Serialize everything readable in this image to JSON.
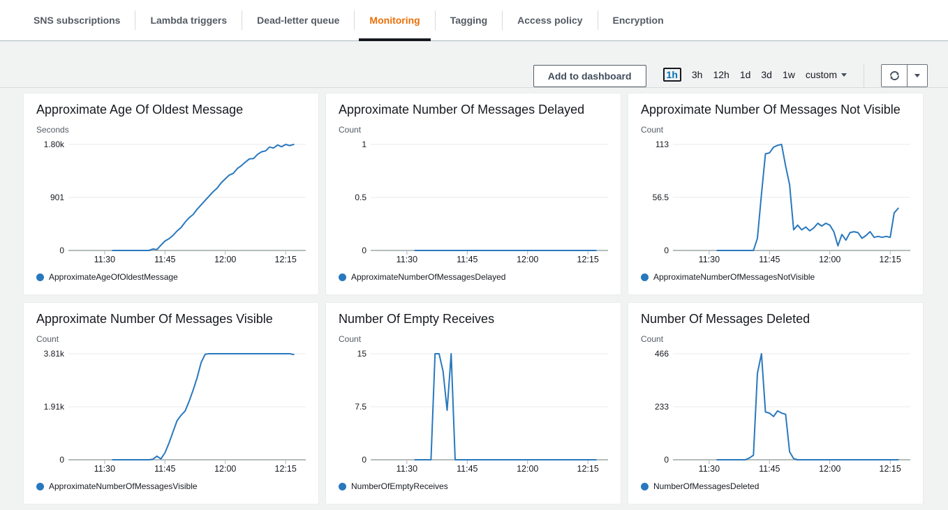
{
  "tabs": {
    "items": [
      {
        "label": "SNS subscriptions",
        "active": false
      },
      {
        "label": "Lambda triggers",
        "active": false
      },
      {
        "label": "Dead-letter queue",
        "active": false
      },
      {
        "label": "Monitoring",
        "active": true
      },
      {
        "label": "Tagging",
        "active": false
      },
      {
        "label": "Access policy",
        "active": false
      },
      {
        "label": "Encryption",
        "active": false
      }
    ]
  },
  "toolbar": {
    "add_to_dashboard_label": "Add to dashboard",
    "ranges": [
      "1h",
      "3h",
      "12h",
      "1d",
      "3d",
      "1w"
    ],
    "selected_range": "1h",
    "custom_label": "custom",
    "refresh_icon": "refresh-icon",
    "caret_icon": "caret-down-icon"
  },
  "colors": {
    "line": "#2878bd",
    "accent_orange": "#eb6f07",
    "selected_range_blue": "#0073bb",
    "grid": "#e9ebeb",
    "axis": "#b4bcbc"
  },
  "chart_data": {
    "type": "line",
    "x_domain": [
      "11:21",
      "12:20"
    ],
    "x_axis_ticks": [
      "11:30",
      "11:45",
      "12:00",
      "12:15"
    ],
    "x_times": [
      "11:32",
      "11:33",
      "11:34",
      "11:35",
      "11:36",
      "11:37",
      "11:38",
      "11:39",
      "11:40",
      "11:41",
      "11:42",
      "11:43",
      "11:44",
      "11:45",
      "11:46",
      "11:47",
      "11:48",
      "11:49",
      "11:50",
      "11:51",
      "11:52",
      "11:53",
      "11:54",
      "11:55",
      "11:56",
      "11:57",
      "11:58",
      "11:59",
      "12:00",
      "12:01",
      "12:02",
      "12:03",
      "12:04",
      "12:05",
      "12:06",
      "12:07",
      "12:08",
      "12:09",
      "12:10",
      "12:11",
      "12:12",
      "12:13",
      "12:14",
      "12:15",
      "12:16",
      "12:17"
    ],
    "charts": [
      {
        "title": "Approximate Age Of Oldest Message",
        "unit": "Seconds",
        "legend": "ApproximateAgeOfOldestMessage",
        "y_ticks": [
          "1.80k",
          "901",
          "0"
        ],
        "y_max": 1800,
        "values": [
          0,
          0,
          0,
          0,
          0,
          0,
          0,
          0,
          0,
          0,
          25,
          15,
          90,
          160,
          200,
          255,
          330,
          390,
          480,
          555,
          610,
          700,
          775,
          850,
          925,
          1000,
          1060,
          1150,
          1215,
          1280,
          1310,
          1390,
          1440,
          1500,
          1555,
          1560,
          1630,
          1675,
          1690,
          1755,
          1740,
          1790,
          1760,
          1800,
          1780,
          1800
        ]
      },
      {
        "title": "Approximate Number Of Messages Delayed",
        "unit": "Count",
        "legend": "ApproximateNumberOfMessagesDelayed",
        "y_ticks": [
          "1",
          "0.5",
          "0"
        ],
        "y_max": 1,
        "values": [
          0,
          0,
          0,
          0,
          0,
          0,
          0,
          0,
          0,
          0,
          0,
          0,
          0,
          0,
          0,
          0,
          0,
          0,
          0,
          0,
          0,
          0,
          0,
          0,
          0,
          0,
          0,
          0,
          0,
          0,
          0,
          0,
          0,
          0,
          0,
          0,
          0,
          0,
          0,
          0,
          0,
          0,
          0,
          0,
          0,
          0
        ]
      },
      {
        "title": "Approximate Number Of Messages Not Visible",
        "unit": "Count",
        "legend": "ApproximateNumberOfMessagesNotVisible",
        "y_ticks": [
          "113",
          "56.5",
          "0"
        ],
        "y_max": 113,
        "values": [
          0,
          0,
          0,
          0,
          0,
          0,
          0,
          0,
          0,
          0,
          13,
          60,
          103,
          104,
          110,
          112,
          113,
          90,
          70,
          22,
          27,
          22,
          25,
          21,
          24,
          29,
          26,
          29,
          27,
          20,
          5,
          17,
          11,
          19,
          20,
          19,
          13,
          16,
          20,
          14,
          15,
          14,
          15,
          14,
          40,
          45
        ]
      },
      {
        "title": "Approximate Number Of Messages Visible",
        "unit": "Count",
        "legend": "ApproximateNumberOfMessagesVisible",
        "y_ticks": [
          "3.81k",
          "1.91k",
          "0"
        ],
        "y_max": 3810,
        "values": [
          0,
          0,
          0,
          0,
          0,
          0,
          0,
          0,
          0,
          0,
          20,
          130,
          30,
          250,
          600,
          1000,
          1400,
          1600,
          1750,
          2100,
          2500,
          2950,
          3500,
          3790,
          3810,
          3810,
          3810,
          3810,
          3810,
          3810,
          3810,
          3810,
          3810,
          3810,
          3810,
          3810,
          3810,
          3810,
          3810,
          3810,
          3810,
          3810,
          3810,
          3810,
          3810,
          3780
        ]
      },
      {
        "title": "Number Of Empty Receives",
        "unit": "Count",
        "legend": "NumberOfEmptyReceives",
        "y_ticks": [
          "15",
          "7.5",
          "0"
        ],
        "y_max": 15,
        "values": [
          0,
          0,
          0,
          0,
          0,
          15,
          15,
          12.5,
          7,
          15,
          0,
          0,
          0,
          0,
          0,
          0,
          0,
          0,
          0,
          0,
          0,
          0,
          0,
          0,
          0,
          0,
          0,
          0,
          0,
          0,
          0,
          0,
          0,
          0,
          0,
          0,
          0,
          0,
          0,
          0,
          0,
          0,
          0,
          0,
          0,
          0
        ]
      },
      {
        "title": "Number Of Messages Deleted",
        "unit": "Count",
        "legend": "NumberOfMessagesDeleted",
        "y_ticks": [
          "466",
          "233",
          "0"
        ],
        "y_max": 466,
        "values": [
          0,
          0,
          0,
          0,
          0,
          0,
          0,
          0,
          8,
          20,
          380,
          466,
          210,
          205,
          190,
          215,
          205,
          200,
          35,
          5,
          0,
          0,
          0,
          0,
          0,
          0,
          0,
          0,
          0,
          0,
          0,
          0,
          0,
          0,
          0,
          0,
          0,
          0,
          0,
          0,
          0,
          0,
          0,
          0,
          0,
          0
        ]
      }
    ]
  }
}
